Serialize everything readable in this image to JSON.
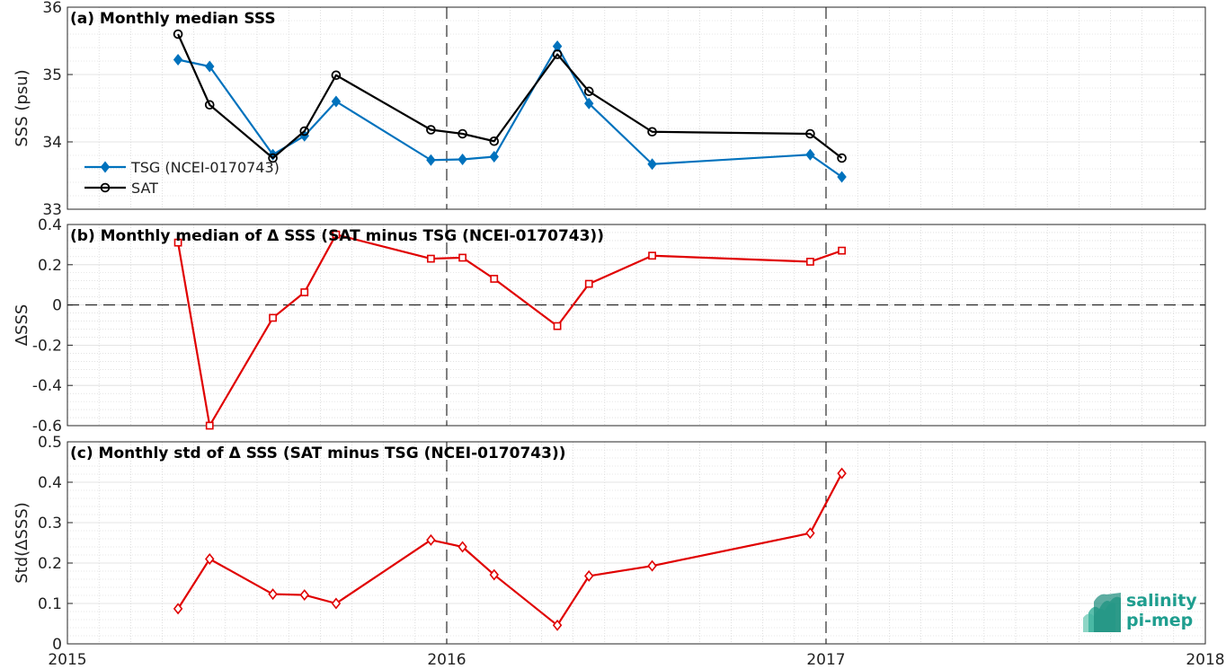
{
  "x_axis": {
    "xlim": [
      2015,
      2018
    ],
    "ticks": [
      2015,
      2016,
      2017,
      2018
    ],
    "tick_labels": [
      "2015",
      "2016",
      "2017",
      "2018"
    ],
    "vlines": [
      2016,
      2017
    ]
  },
  "logo": {
    "line1": "salinity",
    "line2": "pi-mep"
  },
  "colors": {
    "tsg": "#0072BD",
    "sat": "#000000",
    "delta": "#e00000",
    "zero_line": "#000000"
  },
  "chart_data": [
    {
      "type": "line",
      "title": "(a) Monthly median SSS",
      "ylabel": "SSS (psu)",
      "ylim": [
        33,
        36
      ],
      "yticks": [
        33,
        34,
        35,
        36
      ],
      "ytick_labels": [
        "33",
        "34",
        "35",
        "36"
      ],
      "grid": true,
      "legend_position": "bottom-left",
      "x": [
        "2015-04",
        "2015-05",
        "2015-07",
        "2015-08",
        "2015-09",
        "2015-12",
        "2016-01",
        "2016-02",
        "2016-04",
        "2016-05",
        "2016-07",
        "2016-12",
        "2017-01"
      ],
      "series": [
        {
          "name": "TSG (NCEI-0170743)",
          "marker": "diamond-filled",
          "color": "#0072BD",
          "values": [
            35.22,
            35.12,
            33.81,
            34.09,
            34.6,
            33.73,
            33.74,
            33.78,
            35.42,
            34.57,
            33.67,
            33.81,
            33.48
          ]
        },
        {
          "name": "SAT",
          "marker": "circle-open",
          "color": "#000000",
          "values": [
            35.6,
            34.55,
            33.76,
            34.16,
            34.99,
            34.18,
            34.12,
            34.01,
            35.3,
            34.75,
            34.15,
            34.12,
            33.76
          ]
        }
      ]
    },
    {
      "type": "line",
      "title": "(b) Monthly median of Δ SSS (SAT minus TSG (NCEI-0170743))",
      "ylabel": "ΔSSS",
      "ylim": [
        -0.6,
        0.4
      ],
      "yticks": [
        -0.6,
        -0.4,
        -0.2,
        0,
        0.2,
        0.4
      ],
      "ytick_labels": [
        "-0.6",
        "-0.4",
        "-0.2",
        "0",
        "0.2",
        "0.4"
      ],
      "zero_line": true,
      "grid": true,
      "x": [
        "2015-04",
        "2015-05",
        "2015-07",
        "2015-08",
        "2015-09",
        "2015-12",
        "2016-01",
        "2016-02",
        "2016-04",
        "2016-05",
        "2016-07",
        "2016-12",
        "2017-01"
      ],
      "series": [
        {
          "marker": "square-open",
          "color": "#e00000",
          "values": [
            0.31,
            -0.6,
            -0.064,
            0.063,
            0.35,
            0.23,
            0.235,
            0.13,
            -0.105,
            0.105,
            0.245,
            0.215,
            0.27
          ]
        }
      ]
    },
    {
      "type": "line",
      "title": "(c) Monthly std of Δ SSS (SAT minus TSG (NCEI-0170743))",
      "ylabel": "Std(ΔSSS)",
      "ylim": [
        0,
        0.5
      ],
      "yticks": [
        0,
        0.1,
        0.2,
        0.3,
        0.4,
        0.5
      ],
      "ytick_labels": [
        "0",
        "0.1",
        "0.2",
        "0.3",
        "0.4",
        "0.5"
      ],
      "grid": true,
      "x": [
        "2015-04",
        "2015-05",
        "2015-07",
        "2015-08",
        "2015-09",
        "2015-12",
        "2016-01",
        "2016-02",
        "2016-04",
        "2016-05",
        "2016-07",
        "2016-12",
        "2017-01"
      ],
      "series": [
        {
          "marker": "diamond-open",
          "color": "#e00000",
          "values": [
            0.087,
            0.21,
            0.123,
            0.121,
            0.1,
            0.257,
            0.24,
            0.171,
            0.046,
            0.168,
            0.193,
            0.274,
            0.422
          ]
        }
      ]
    }
  ]
}
